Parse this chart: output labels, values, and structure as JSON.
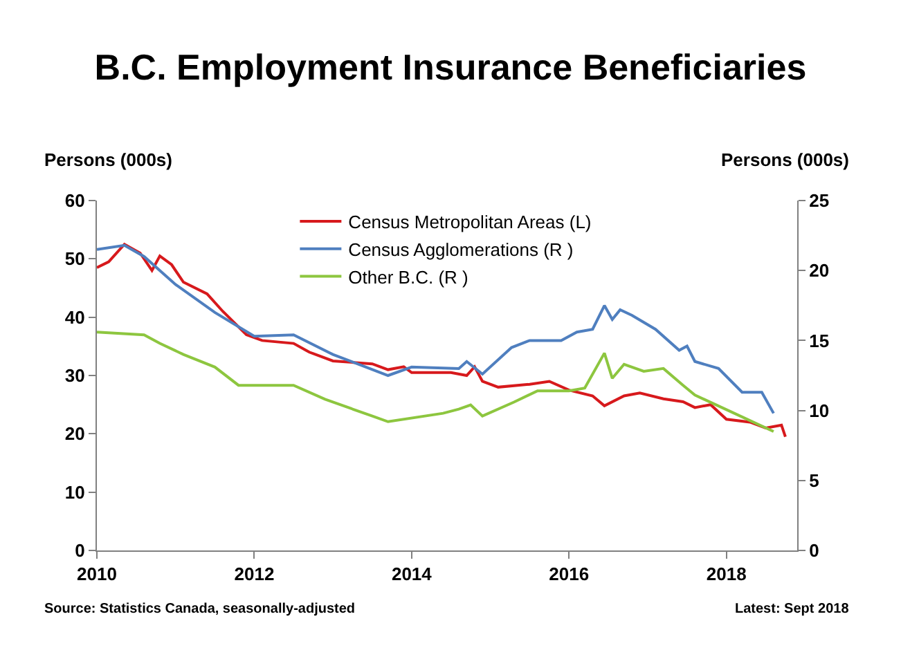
{
  "chart_data": {
    "type": "line",
    "title": "B.C. Employment Insurance Beneficiaries",
    "ylabel": "Persons (000s)",
    "y2label": "Persons (000s)",
    "xlim": [
      2010,
      2018.9
    ],
    "xticks": [
      2010,
      2012,
      2014,
      2016,
      2018
    ],
    "ylim": [
      0,
      60
    ],
    "yticks": [
      0,
      10,
      20,
      30,
      40,
      50,
      60
    ],
    "y2lim": [
      0,
      25
    ],
    "y2ticks": [
      0,
      5,
      10,
      15,
      20,
      25
    ],
    "grid": false,
    "legend": "top",
    "line_style": "solid",
    "marker": "none",
    "annotations": [
      "Source: Statistics Canada, seasonally-adjusted",
      "Latest: Sept 2018"
    ],
    "series": [
      {
        "name": "Census Metropolitan Areas (L)",
        "color": "#d7191c",
        "x": [
          2010,
          2010.15,
          2010.35,
          2010.55,
          2010.7,
          2010.8,
          2010.95,
          2011.1,
          2011.4,
          2011.6,
          2011.9,
          2012.1,
          2012.5,
          2012.7,
          2013,
          2013.5,
          2013.7,
          2013.9,
          2014,
          2014.5,
          2014.7,
          2014.8,
          2014.9,
          2015.1,
          2015.5,
          2015.75,
          2016,
          2016.3,
          2016.45,
          2016.7,
          2016.9,
          2017.2,
          2017.45,
          2017.6,
          2017.8,
          2018,
          2018.3,
          2018.5,
          2018.7,
          2018.75
        ],
        "values": [
          48.5,
          49.5,
          52.5,
          51,
          48,
          50.5,
          49,
          46,
          44,
          41,
          37,
          36,
          35.5,
          34,
          32.5,
          32,
          31,
          31.5,
          30.5,
          30.5,
          30,
          31.5,
          29,
          28,
          28.5,
          29,
          27.5,
          26.5,
          24.8,
          26.5,
          27,
          26,
          25.5,
          24.5,
          25,
          22.5,
          22,
          21,
          21.5,
          19.5
        ]
      },
      {
        "name": "Census Agglomerations (R )",
        "color": "#4f7fbf",
        "axis": "y2",
        "x": [
          2010,
          2010.35,
          2010.6,
          2011,
          2011.5,
          2012,
          2012.5,
          2013,
          2013.7,
          2014,
          2014.6,
          2014.7,
          2014.9,
          2015.27,
          2015.5,
          2015.9,
          2016.1,
          2016.3,
          2016.45,
          2016.55,
          2016.65,
          2016.8,
          2017.1,
          2017.4,
          2017.5,
          2017.6,
          2017.9,
          2018.2,
          2018.45,
          2018.6
        ],
        "values": [
          21.5,
          21.8,
          21,
          19,
          17,
          15.3,
          15.4,
          14,
          12.5,
          13.1,
          13,
          13.5,
          12.6,
          14.5,
          15,
          15,
          15.6,
          15.8,
          17.5,
          16.5,
          17.2,
          16.8,
          15.8,
          14.3,
          14.6,
          13.5,
          13,
          11.3,
          11.3,
          9.8
        ]
      },
      {
        "name": "Other B.C. (R )",
        "color": "#8dc63f",
        "axis": "y2",
        "x": [
          2010,
          2010.6,
          2010.8,
          2011.1,
          2011.5,
          2011.8,
          2012.5,
          2012.9,
          2013.5,
          2013.7,
          2014.4,
          2014.6,
          2014.75,
          2014.9,
          2015.3,
          2015.6,
          2016,
          2016.2,
          2016.45,
          2016.55,
          2016.7,
          2016.95,
          2017.2,
          2017.45,
          2017.6,
          2018.1,
          2018.6
        ],
        "values": [
          15.6,
          15.4,
          14.8,
          14,
          13.1,
          11.8,
          11.8,
          10.8,
          9.6,
          9.2,
          9.8,
          10.1,
          10.4,
          9.6,
          10.6,
          11.4,
          11.4,
          11.6,
          14.1,
          12.3,
          13.3,
          12.8,
          13,
          11.8,
          11.1,
          9.8,
          8.5
        ]
      }
    ]
  }
}
